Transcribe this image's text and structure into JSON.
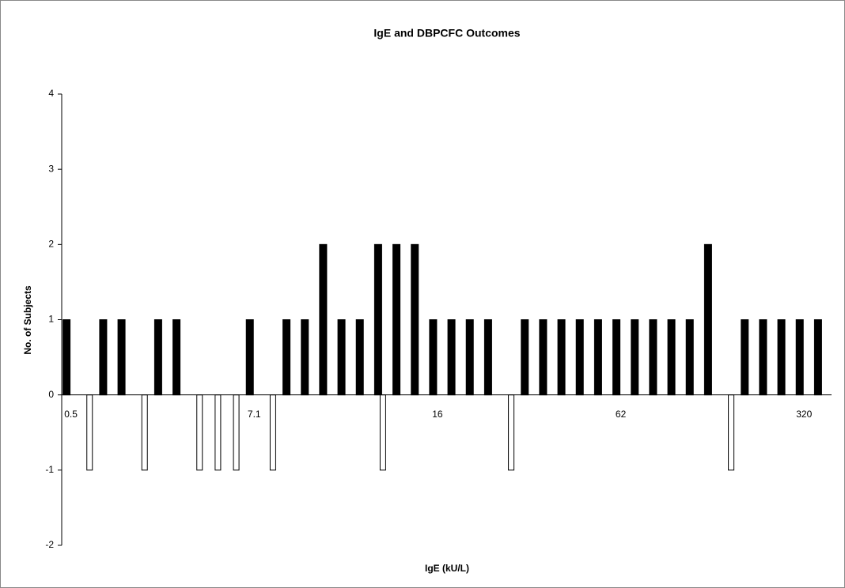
{
  "chart_data": {
    "type": "bar",
    "title": "IgE and DBPCFC Outcomes",
    "x_label": "IgE (kU/L)",
    "y_label": "No. of Subjects",
    "categories": [
      "0.5",
      null,
      null,
      null,
      null,
      null,
      null,
      null,
      null,
      null,
      "7.1",
      null,
      null,
      null,
      null,
      null,
      null,
      null,
      null,
      null,
      "16",
      null,
      null,
      null,
      null,
      null,
      null,
      null,
      null,
      null,
      "62",
      null,
      null,
      null,
      null,
      null,
      null,
      null,
      null,
      null,
      "320",
      null
    ],
    "series": [
      {
        "color": "#000000",
        "values": [
          1,
          0,
          1,
          1,
          0,
          1,
          1,
          0,
          0,
          0,
          1,
          0,
          1,
          1,
          2,
          1,
          1,
          2,
          2,
          2,
          1,
          1,
          1,
          1,
          0,
          1,
          1,
          1,
          1,
          1,
          1,
          1,
          1,
          1,
          1,
          2,
          0,
          1,
          1,
          1,
          1,
          1
        ]
      },
      {
        "color": "#ffffff",
        "values": [
          0,
          -1,
          0,
          0,
          -1,
          0,
          0,
          -1,
          -1,
          -1,
          0,
          -1,
          0,
          0,
          0,
          0,
          0,
          -1,
          0,
          0,
          0,
          0,
          0,
          0,
          -1,
          0,
          0,
          0,
          0,
          0,
          0,
          0,
          0,
          0,
          0,
          0,
          -1,
          0,
          0,
          0,
          0,
          0
        ]
      }
    ],
    "ylim": [
      -2,
      4
    ],
    "yticks": [
      -2,
      -1,
      0,
      1,
      2,
      3,
      4
    ],
    "grid": false
  }
}
